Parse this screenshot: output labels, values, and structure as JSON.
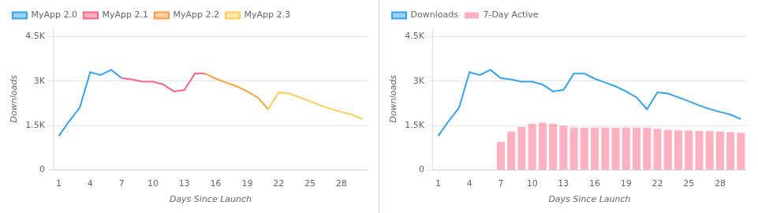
{
  "chart_data": [
    {
      "type": "line",
      "x_label": "Days Since Launch",
      "y_label": "Downloads",
      "xlim": [
        0.5,
        30.5
      ],
      "ylim": [
        0,
        4800
      ],
      "xticks": [
        1,
        4,
        7,
        10,
        13,
        16,
        19,
        22,
        25,
        28
      ],
      "yticks": [
        0,
        {
          "value": 1500,
          "label": "1.5K"
        },
        {
          "value": 3000,
          "label": "3K"
        },
        {
          "value": 4500,
          "label": "4.5K"
        }
      ],
      "grid": "y",
      "legend": "upper left",
      "series": [
        {
          "name": "MyApp 2.0",
          "x": [
            1,
            2,
            3,
            4,
            5,
            6,
            7
          ],
          "values": [
            1150,
            1650,
            2100,
            3300,
            3200,
            3380,
            3100
          ]
        },
        {
          "name": "MyApp 2.1",
          "x": [
            7,
            8,
            9,
            10,
            11,
            12,
            13,
            14,
            15
          ],
          "values": [
            3100,
            3050,
            2980,
            2980,
            2880,
            2650,
            2700,
            3250,
            3250
          ]
        },
        {
          "name": "MyApp 2.2",
          "x": [
            15,
            16,
            17,
            18,
            19,
            20,
            21
          ],
          "values": [
            3250,
            3080,
            2950,
            2820,
            2650,
            2450,
            2050
          ]
        },
        {
          "name": "MyApp 2.3",
          "x": [
            21,
            22,
            23,
            24,
            25,
            26,
            27,
            28,
            29,
            30
          ],
          "values": [
            2050,
            2620,
            2580,
            2450,
            2320,
            2180,
            2060,
            1960,
            1870,
            1720
          ]
        }
      ]
    },
    {
      "type": "bar",
      "x_label": "Days Since Launch",
      "y_label": "Downloads",
      "xlim": [
        0.5,
        30.5
      ],
      "ylim": [
        0,
        4800
      ],
      "xticks": [
        1,
        4,
        7,
        10,
        13,
        16,
        19,
        22,
        25,
        28
      ],
      "yticks": [
        0,
        {
          "value": 1500,
          "label": "1.5K"
        },
        {
          "value": 3000,
          "label": "3K"
        },
        {
          "value": 4500,
          "label": "4.5K"
        }
      ],
      "grid": "y",
      "legend": "upper left",
      "series": [
        {
          "name": "Downloads",
          "type": "line",
          "x": [
            1,
            2,
            3,
            4,
            5,
            6,
            7,
            8,
            9,
            10,
            11,
            12,
            13,
            14,
            15,
            16,
            17,
            18,
            19,
            20,
            21,
            22,
            23,
            24,
            25,
            26,
            27,
            28,
            29,
            30
          ],
          "values": [
            1150,
            1650,
            2100,
            3300,
            3200,
            3380,
            3100,
            3050,
            2980,
            2980,
            2880,
            2650,
            2700,
            3250,
            3250,
            3080,
            2950,
            2820,
            2650,
            2450,
            2050,
            2620,
            2580,
            2450,
            2320,
            2180,
            2060,
            1960,
            1870,
            1720
          ]
        },
        {
          "name": "7-Day Active",
          "type": "bar",
          "x": [
            7,
            8,
            9,
            10,
            11,
            12,
            13,
            14,
            15,
            16,
            17,
            18,
            19,
            20,
            21,
            22,
            23,
            24,
            25,
            26,
            27,
            28,
            29,
            30
          ],
          "values": [
            950,
            1300,
            1450,
            1560,
            1600,
            1560,
            1490,
            1430,
            1430,
            1430,
            1430,
            1430,
            1430,
            1430,
            1430,
            1390,
            1360,
            1340,
            1330,
            1320,
            1310,
            1300,
            1280,
            1260
          ]
        }
      ]
    }
  ]
}
